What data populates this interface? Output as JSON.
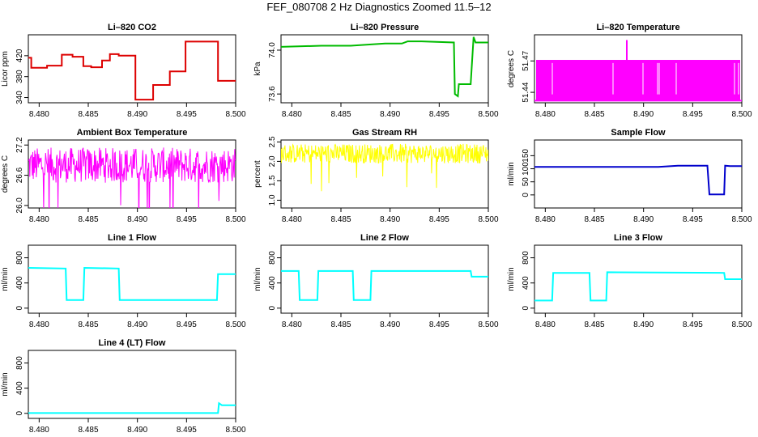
{
  "title": "FEF_080708  2 Hz Diagnostics Zoomed 11.5–12",
  "chart_data": [
    {
      "type": "line",
      "title": "Li–820 CO2",
      "ylabel": "Licor ppm",
      "xlim": [
        8.4789,
        8.5
      ],
      "ylim": [
        330,
        460
      ],
      "xticks": [
        "8.480",
        "8.485",
        "8.490",
        "8.495",
        "8.500"
      ],
      "yticks": [
        "340",
        "380",
        "420"
      ],
      "color": "#dd0000",
      "noise": 0,
      "series": [
        {
          "x": [
            8.4789,
            8.4792,
            8.4792,
            8.4808,
            8.4808,
            8.4823,
            8.4823,
            8.4834,
            8.4834,
            8.4845,
            8.4845,
            8.4853,
            8.4853,
            8.4864,
            8.4864,
            8.4872,
            8.4872,
            8.4881,
            8.4881,
            8.4898,
            8.4898,
            8.4916,
            8.4916,
            8.4933,
            8.4933,
            8.4949,
            8.4949,
            8.4982,
            8.4982,
            8.5
          ],
          "y": [
            416,
            416,
            397,
            397,
            401,
            401,
            422,
            422,
            418,
            418,
            400,
            400,
            398,
            398,
            411,
            411,
            423,
            423,
            420,
            420,
            336,
            336,
            364,
            364,
            390,
            390,
            447,
            447,
            372,
            372
          ]
        }
      ]
    },
    {
      "type": "line",
      "title": "Li–820 Pressure",
      "ylabel": "kPa",
      "xlim": [
        8.4789,
        8.5
      ],
      "ylim": [
        73.52,
        74.14
      ],
      "xticks": [
        "8.480",
        "8.485",
        "8.490",
        "8.495",
        "8.500"
      ],
      "yticks": [
        "73.6",
        "74.0"
      ],
      "color": "#00bb00",
      "noise": 0,
      "series": [
        {
          "x": [
            8.4789,
            8.483,
            8.486,
            8.4895,
            8.4912,
            8.4918,
            8.4932,
            8.4965,
            8.4966,
            8.4969,
            8.497,
            8.4982,
            8.4985,
            8.4987,
            8.5
          ],
          "y": [
            74.03,
            74.04,
            74.04,
            74.06,
            74.06,
            74.08,
            74.08,
            74.07,
            73.6,
            73.58,
            73.69,
            73.69,
            74.12,
            74.07,
            74.07
          ]
        }
      ]
    },
    {
      "type": "line",
      "title": "Li–820 Temperature",
      "ylabel": "degrees C",
      "xlim": [
        8.4789,
        8.5
      ],
      "ylim": [
        51.43,
        51.495
      ],
      "xticks": [
        "8.480",
        "8.485",
        "8.490",
        "8.495",
        "8.500"
      ],
      "yticks": [
        "51.44",
        "51.47"
      ],
      "color": "#ff00ff",
      "noise": 0,
      "series": [
        {
          "x": [
            8.4789,
            8.4883,
            8.4883,
            8.4883,
            8.5
          ],
          "y": [
            51.432,
            51.432,
            51.49,
            51.432,
            51.432
          ]
        }
      ]
    },
    {
      "type": "line",
      "title": "Ambient Box Temperature",
      "ylabel": "degrees C",
      "xlim": [
        8.4789,
        8.5
      ],
      "ylim": [
        25.95,
        27.3
      ],
      "xticks": [
        "8.480",
        "8.485",
        "8.490",
        "8.495",
        "8.500"
      ],
      "yticks": [
        "26.0",
        "26.6",
        "27.2"
      ],
      "color": "#ff00ff",
      "noise": 0.35,
      "series": [
        {
          "x": [
            8.4789,
            8.5
          ],
          "y": [
            26.8,
            26.8
          ]
        }
      ]
    },
    {
      "type": "line",
      "title": "Gas Stream RH",
      "ylabel": "percent",
      "xlim": [
        8.4789,
        8.5
      ],
      "ylim": [
        0.8,
        2.55
      ],
      "xticks": [
        "8.480",
        "8.485",
        "8.490",
        "8.495",
        "8.500"
      ],
      "yticks": [
        "1.0",
        "1.5",
        "2.0",
        "2.5"
      ],
      "color": "#ffff00",
      "noise": 0.25,
      "series": [
        {
          "x": [
            8.4789,
            8.5
          ],
          "y": [
            2.2,
            2.2
          ]
        }
      ]
    },
    {
      "type": "line",
      "title": "Sample Flow",
      "ylabel": "ml/min",
      "xlim": [
        8.4789,
        8.5
      ],
      "ylim": [
        -50,
        210
      ],
      "xticks": [
        "8.480",
        "8.485",
        "8.490",
        "8.495",
        "8.500"
      ],
      "yticks": [
        "0",
        "50",
        "100",
        "150"
      ],
      "color": "#0000cc",
      "noise": 0,
      "series": [
        {
          "x": [
            8.4789,
            8.4915,
            8.4935,
            8.4965,
            8.4967,
            8.4982,
            8.4983,
            8.4988,
            8.5
          ],
          "y": [
            107,
            107,
            112,
            112,
            2,
            2,
            112,
            110,
            110
          ]
        }
      ]
    },
    {
      "type": "line",
      "title": "Line 1 Flow",
      "ylabel": "ml/min",
      "xlim": [
        8.4789,
        8.5
      ],
      "ylim": [
        -80,
        1000
      ],
      "xticks": [
        "8.480",
        "8.485",
        "8.490",
        "8.495",
        "8.500"
      ],
      "yticks": [
        "0",
        "400",
        "800"
      ],
      "color": "#00ffff",
      "noise": 0,
      "series": [
        {
          "x": [
            8.4789,
            8.4827,
            8.4828,
            8.4845,
            8.4846,
            8.4881,
            8.4882,
            8.4981,
            8.4982,
            8.5
          ],
          "y": [
            640,
            630,
            130,
            130,
            640,
            630,
            130,
            130,
            540,
            540
          ]
        }
      ]
    },
    {
      "type": "line",
      "title": "Line 2 Flow",
      "ylabel": "ml/min",
      "xlim": [
        8.4789,
        8.5
      ],
      "ylim": [
        -80,
        1000
      ],
      "xticks": [
        "8.480",
        "8.485",
        "8.490",
        "8.495",
        "8.500"
      ],
      "yticks": [
        "0",
        "400",
        "800"
      ],
      "color": "#00ffff",
      "noise": 0,
      "series": [
        {
          "x": [
            8.4789,
            8.4807,
            8.4808,
            8.4826,
            8.4827,
            8.4862,
            8.4863,
            8.488,
            8.4881,
            8.4982,
            8.4983,
            8.5
          ],
          "y": [
            590,
            590,
            130,
            130,
            590,
            590,
            130,
            130,
            590,
            590,
            500,
            500
          ]
        }
      ]
    },
    {
      "type": "line",
      "title": "Line 3 Flow",
      "ylabel": "ml/min",
      "xlim": [
        8.4789,
        8.5
      ],
      "ylim": [
        -80,
        1000
      ],
      "xticks": [
        "8.480",
        "8.485",
        "8.490",
        "8.495",
        "8.500"
      ],
      "yticks": [
        "0",
        "400",
        "800"
      ],
      "color": "#00ffff",
      "noise": 0,
      "series": [
        {
          "x": [
            8.4789,
            8.4807,
            8.4808,
            8.4845,
            8.4846,
            8.4862,
            8.4863,
            8.4982,
            8.4983,
            8.5
          ],
          "y": [
            120,
            120,
            560,
            560,
            120,
            120,
            570,
            560,
            460,
            460
          ]
        }
      ]
    },
    {
      "type": "line",
      "title": "Line 4 (LT) Flow",
      "ylabel": "ml/min",
      "xlim": [
        8.4789,
        8.5
      ],
      "ylim": [
        -80,
        1000
      ],
      "xticks": [
        "8.480",
        "8.485",
        "8.490",
        "8.495",
        "8.500"
      ],
      "yticks": [
        "0",
        "400",
        "800"
      ],
      "color": "#00ffff",
      "noise": 0,
      "series": [
        {
          "x": [
            8.4789,
            8.4982,
            8.4983,
            8.4986,
            8.5
          ],
          "y": [
            5,
            5,
            160,
            130,
            130
          ]
        }
      ]
    }
  ]
}
